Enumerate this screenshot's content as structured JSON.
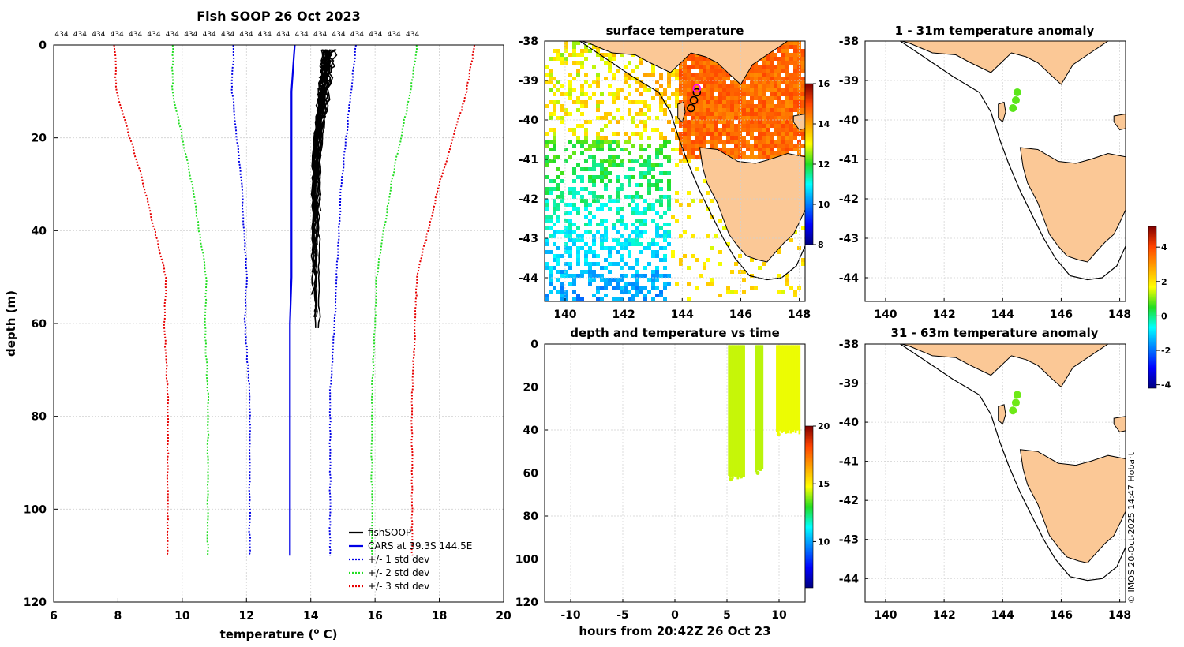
{
  "figure": {
    "title": "Fish SOOP 26 Oct 2023",
    "credit": "© IMOS 20-Oct-2025 14:47 Hobart"
  },
  "colors": {
    "fishsoop": "#000000",
    "cars": "#0000e6",
    "std1": "#0000e6",
    "std2": "#22dd22",
    "std3": "#e60000",
    "land": "#fbc896",
    "grid": "#d0d0d0"
  },
  "chart_data": [
    {
      "id": "profile",
      "type": "line",
      "title": "Fish SOOP 26 Oct 2023",
      "xlabel_main": "temperature (",
      "xlabel_sup": "o",
      "xlabel_tail": " C)",
      "ylabel": "depth (m)",
      "xlim": [
        6,
        20
      ],
      "ylim": [
        120,
        0
      ],
      "xticks": [
        6,
        8,
        10,
        12,
        14,
        16,
        18,
        20
      ],
      "yticks": [
        0,
        20,
        40,
        60,
        80,
        100,
        120
      ],
      "top_labels": [
        "434",
        "434",
        "434",
        "434",
        "434",
        "434",
        "434",
        "434",
        "434",
        "434",
        "434",
        "434",
        "434",
        "434",
        "434",
        "434",
        "434",
        "434",
        "434",
        "434"
      ],
      "legend": [
        "fishSOOP",
        "CARS at 39.3S 144.5E",
        "+/- 1 std dev",
        "+/- 2 std dev",
        "+/- 3 std dev"
      ],
      "cars": {
        "temp": [
          13.5,
          13.45,
          13.4,
          13.4,
          13.4,
          13.35,
          13.35,
          13.35
        ],
        "depth": [
          0,
          5,
          10,
          30,
          50,
          60,
          75,
          110
        ]
      },
      "std_offset": [
        {
          "name": "+/- 1 std dev",
          "d": [
            0,
            10,
            30,
            50,
            60,
            75,
            110
          ],
          "off": [
            1.9,
            1.85,
            1.55,
            1.4,
            1.4,
            1.25,
            1.25
          ]
        },
        {
          "name": "+/- 2 std dev",
          "d": [
            0,
            10,
            30,
            50,
            60,
            75,
            110
          ],
          "off": [
            3.8,
            3.7,
            3.1,
            2.65,
            2.65,
            2.55,
            2.55
          ]
        },
        {
          "name": "+/- 3 std dev",
          "d": [
            0,
            10,
            30,
            50,
            60,
            75,
            110
          ],
          "off": [
            5.6,
            5.45,
            4.6,
            3.9,
            3.9,
            3.8,
            3.8
          ]
        }
      ],
      "fishsoop": {
        "temp_range": [
          14.0,
          14.9
        ],
        "depth_range": [
          1,
          63
        ],
        "note": "ensemble of about 20 profiles, warmer near surface"
      }
    },
    {
      "id": "sst",
      "type": "heatmap",
      "title": "surface temperature",
      "xlim": [
        139.3,
        148.2
      ],
      "ylim": [
        -44.6,
        -38
      ],
      "xticks": [
        140,
        142,
        144,
        146,
        148
      ],
      "yticks": [
        -38,
        -39,
        -40,
        -41,
        -42,
        -43,
        -44
      ],
      "colorbar": {
        "range": [
          8,
          16
        ],
        "ticks": [
          8,
          10,
          12,
          14,
          16
        ]
      },
      "stations": [
        [
          144.5,
          -39.3
        ],
        [
          144.4,
          -39.5
        ],
        [
          144.3,
          -39.7
        ],
        [
          144.5,
          -39.2
        ]
      ]
    },
    {
      "id": "depth_time",
      "type": "scatter",
      "title": "depth and temperature vs time",
      "xlabel": "hours from 20:42Z 26 Oct 23",
      "xlim": [
        -12.5,
        12.5
      ],
      "ylim": [
        120,
        0
      ],
      "xticks": [
        -10,
        -5,
        0,
        5,
        10
      ],
      "yticks": [
        0,
        20,
        40,
        60,
        80,
        100,
        120
      ],
      "colorbar": {
        "range": [
          6,
          20
        ],
        "ticks": [
          10,
          15,
          20
        ]
      },
      "casts": [
        {
          "t0": 5.2,
          "t1": 6.7,
          "max_depth": 63,
          "temp": 14.3
        },
        {
          "t0": 7.8,
          "t1": 8.5,
          "max_depth": 60,
          "temp": 14.2
        },
        {
          "t0": 9.8,
          "t1": 12.0,
          "max_depth": 42,
          "temp": 14.6
        }
      ]
    },
    {
      "id": "anom1",
      "type": "scatter",
      "title": "1 - 31m temperature anomaly",
      "xlim": [
        139.3,
        148.2
      ],
      "ylim": [
        -44.6,
        -38
      ],
      "xticks": [
        140,
        142,
        144,
        146,
        148
      ],
      "yticks": [
        -38,
        -39,
        -40,
        -41,
        -42,
        -43,
        -44
      ],
      "points": [
        [
          144.5,
          -39.3
        ],
        [
          144.45,
          -39.5
        ],
        [
          144.35,
          -39.7
        ]
      ],
      "anomaly": 0.8
    },
    {
      "id": "anom2",
      "type": "scatter",
      "title": "31 - 63m temperature anomaly",
      "xlim": [
        139.3,
        148.2
      ],
      "ylim": [
        -44.6,
        -38
      ],
      "xticks": [
        140,
        142,
        144,
        146,
        148
      ],
      "yticks": [
        -38,
        -39,
        -40,
        -41,
        -42,
        -43,
        -44
      ],
      "points": [
        [
          144.5,
          -39.3
        ],
        [
          144.45,
          -39.5
        ],
        [
          144.35,
          -39.7
        ]
      ],
      "anomaly": 0.9,
      "colorbar": {
        "range": [
          -4.2,
          5.2
        ],
        "ticks": [
          -4,
          -2,
          0,
          2,
          4
        ]
      }
    }
  ]
}
